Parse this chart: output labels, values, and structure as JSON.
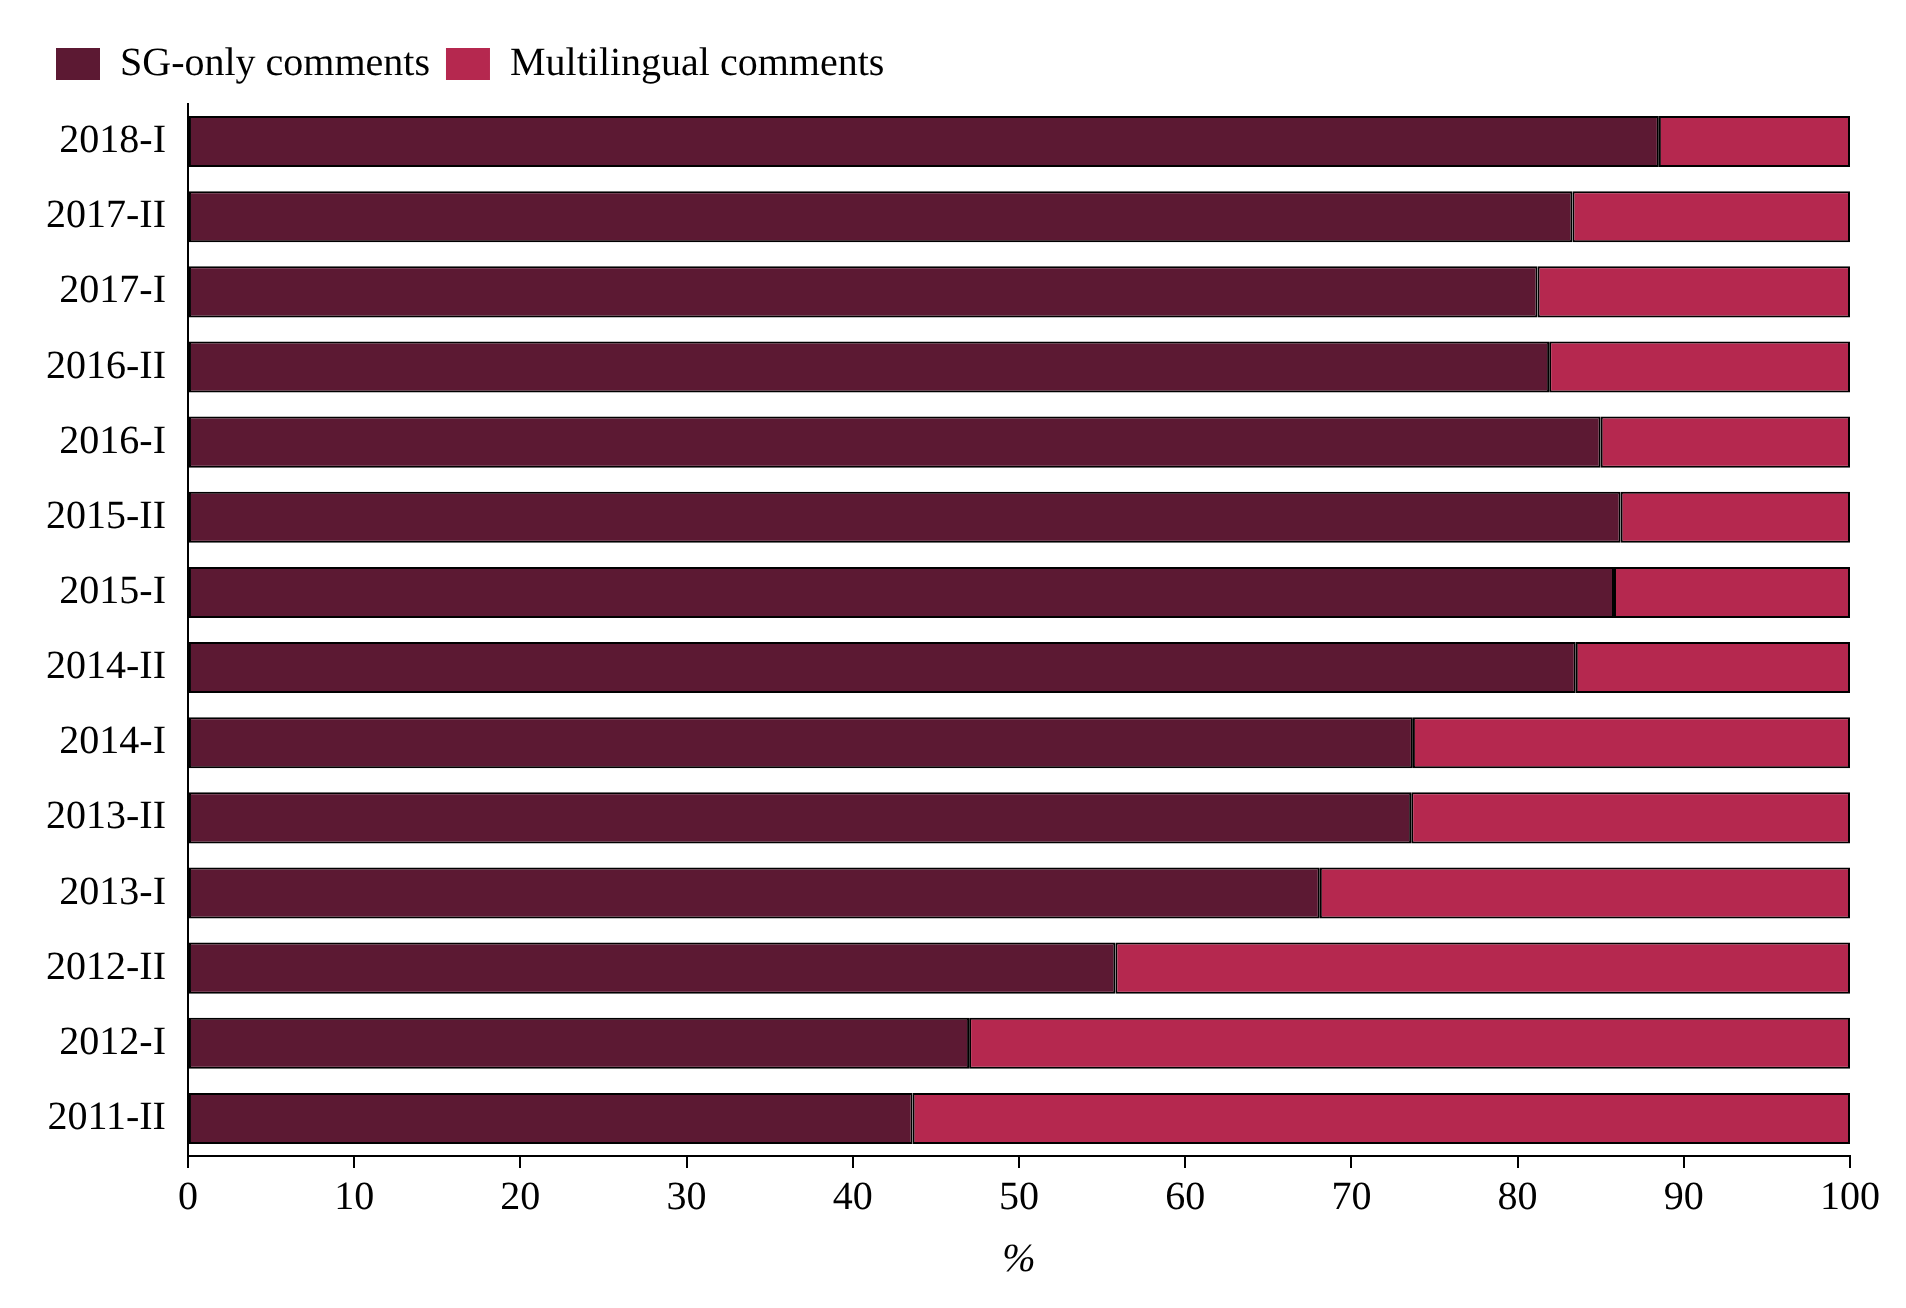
{
  "chart_data": {
    "type": "bar",
    "orientation": "horizontal",
    "stacked": true,
    "categories": [
      "2018-I",
      "2017-II",
      "2017-I",
      "2016-II",
      "2016-I",
      "2015-II",
      "2015-I",
      "2014-II",
      "2014-I",
      "2013-II",
      "2013-I",
      "2012-II",
      "2012-I",
      "2011-II"
    ],
    "series": [
      {
        "name": "SG-only comments",
        "color": "#5c1933",
        "values": [
          88.5,
          83.3,
          81.2,
          81.9,
          85.0,
          86.2,
          85.8,
          83.5,
          73.7,
          73.6,
          68.1,
          55.8,
          47.0,
          43.6
        ]
      },
      {
        "name": "Multilingual comments",
        "color": "#b5284f",
        "values": [
          11.5,
          16.7,
          18.8,
          18.1,
          15.0,
          13.8,
          14.2,
          16.5,
          26.3,
          26.4,
          31.9,
          44.2,
          53.0,
          56.4
        ]
      }
    ],
    "xlabel": "%",
    "xlim": [
      0,
      100
    ],
    "xticks": [
      0,
      10,
      20,
      30,
      40,
      50,
      60,
      70,
      80,
      90,
      100
    ],
    "grid": false,
    "legend": "top left"
  }
}
